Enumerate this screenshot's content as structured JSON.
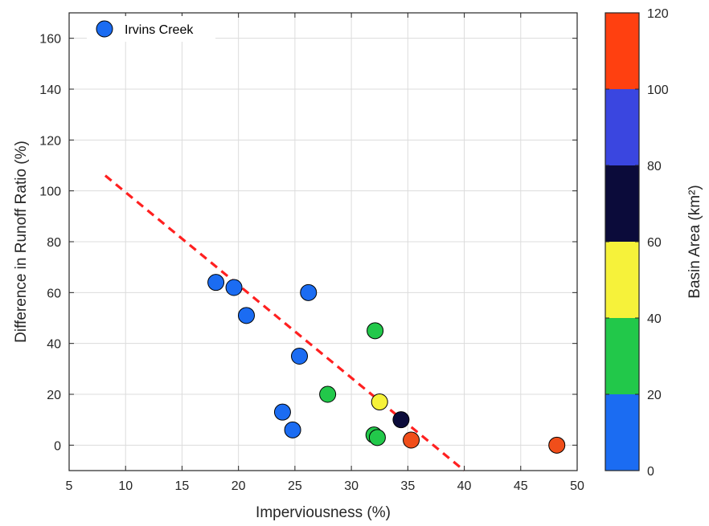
{
  "chart_data": {
    "type": "scatter",
    "xlabel": "Imperviousness (%)",
    "ylabel": "Difference in Runoff Ratio (%)",
    "xlim": [
      5,
      50
    ],
    "ylim": [
      -10,
      170
    ],
    "xticks": [
      5,
      10,
      15,
      20,
      25,
      30,
      35,
      40,
      45,
      50
    ],
    "yticks": [
      0,
      20,
      40,
      60,
      80,
      100,
      120,
      140,
      160
    ],
    "grid": true,
    "legend": {
      "placement": "top-left",
      "label": "Irvins Creek",
      "color": "#1b6cf2"
    },
    "points": [
      {
        "x": 18.0,
        "y": 64,
        "color": "#1b6cf2"
      },
      {
        "x": 19.6,
        "y": 62,
        "color": "#1b6cf2"
      },
      {
        "x": 20.7,
        "y": 51,
        "color": "#1b6cf2"
      },
      {
        "x": 26.2,
        "y": 60,
        "color": "#1b6cf2"
      },
      {
        "x": 25.4,
        "y": 35,
        "color": "#1b6cf2"
      },
      {
        "x": 23.9,
        "y": 13,
        "color": "#1b6cf2"
      },
      {
        "x": 24.8,
        "y": 6,
        "color": "#1b6cf2"
      },
      {
        "x": 32.1,
        "y": 45,
        "color": "#22c84a"
      },
      {
        "x": 27.9,
        "y": 20,
        "color": "#22c84a"
      },
      {
        "x": 32.0,
        "y": 4,
        "color": "#22c84a"
      },
      {
        "x": 32.3,
        "y": 3,
        "color": "#22c84a"
      },
      {
        "x": 32.5,
        "y": 17,
        "color": "#f6f23a"
      },
      {
        "x": 34.4,
        "y": 10,
        "color": "#0b0b3a"
      },
      {
        "x": 35.3,
        "y": 2,
        "color": "#f04e1a"
      },
      {
        "x": 48.2,
        "y": 0,
        "color": "#f04e1a"
      }
    ],
    "trendline": {
      "x": [
        8.2,
        40.0
      ],
      "y": [
        106,
        -10
      ],
      "color": "#ff2020",
      "style": "dashed"
    },
    "colorbar": {
      "label": "Basin Area (km²)",
      "range": [
        0,
        120
      ],
      "ticks": [
        0,
        20,
        40,
        60,
        80,
        100,
        120
      ],
      "bands": [
        {
          "from": 0,
          "to": 20,
          "color": "#1b6cf2"
        },
        {
          "from": 20,
          "to": 40,
          "color": "#22c84a"
        },
        {
          "from": 40,
          "to": 60,
          "color": "#f6f23a"
        },
        {
          "from": 60,
          "to": 80,
          "color": "#0b0b3a"
        },
        {
          "from": 80,
          "to": 100,
          "color": "#3a46e0"
        },
        {
          "from": 100,
          "to": 120,
          "color": "#ff4010"
        }
      ]
    }
  }
}
